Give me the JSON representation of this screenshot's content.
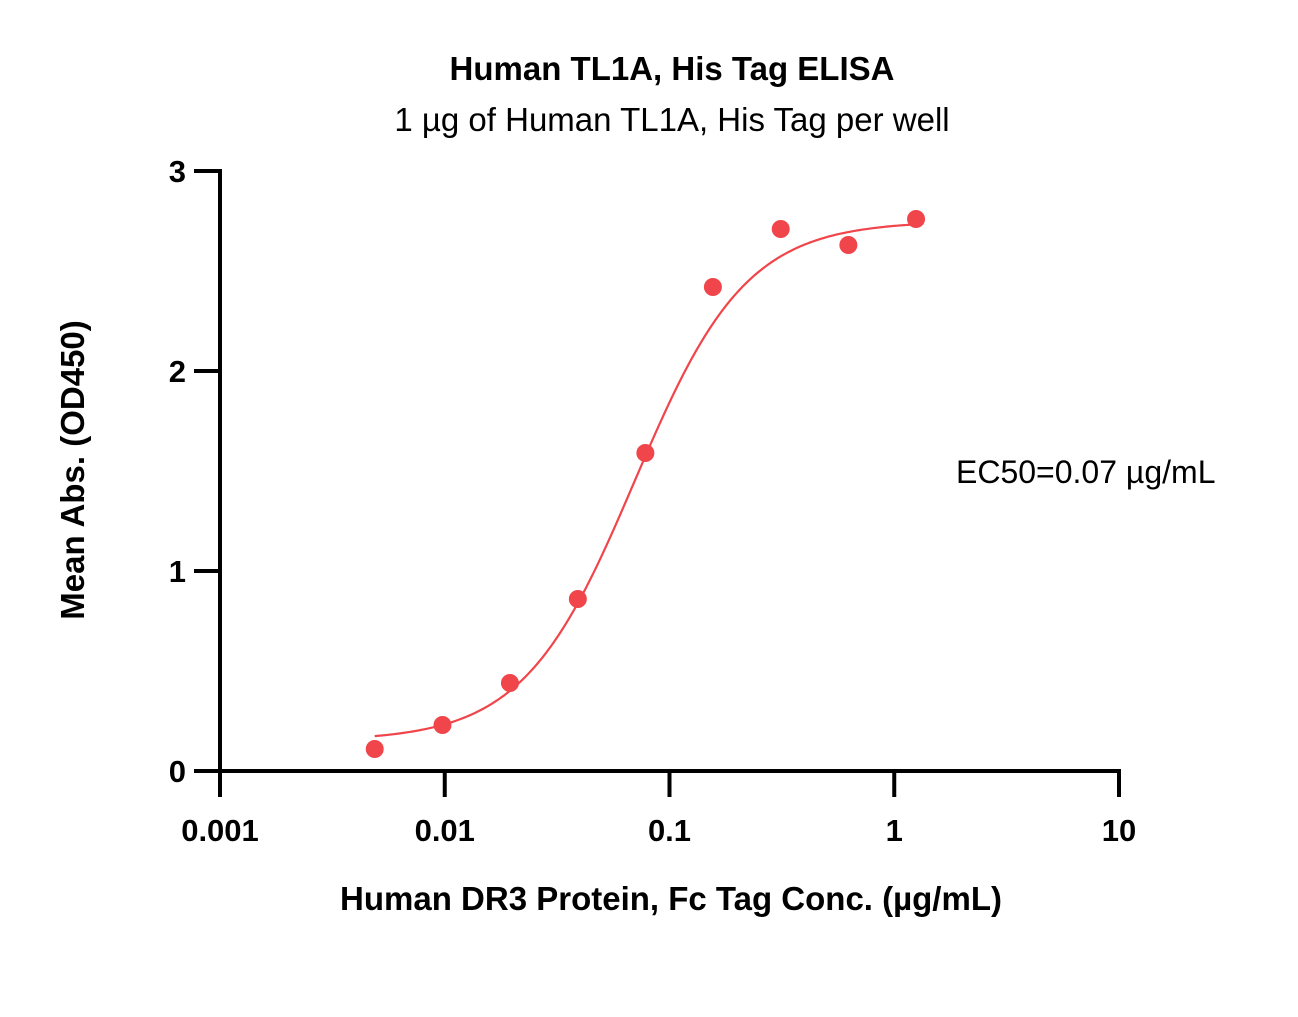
{
  "colors": {
    "series": "#f0454a",
    "axis": "#000000"
  },
  "chart_data": {
    "type": "scatter",
    "title": "Human TL1A, His Tag ELISA",
    "subtitle": "1 µg of Human TL1A, His Tag per well",
    "xlabel": "Human DR3 Protein, Fc Tag Conc. (µg/mL)",
    "ylabel": "Mean Abs. (OD450)",
    "x_scale": "log",
    "xlim": [
      0.001,
      10
    ],
    "ylim": [
      0,
      3
    ],
    "x_ticks": [
      {
        "value": 0.001,
        "label": "0.001"
      },
      {
        "value": 0.01,
        "label": "0.01"
      },
      {
        "value": 0.1,
        "label": "0.1"
      },
      {
        "value": 1,
        "label": "1"
      },
      {
        "value": 10,
        "label": "10"
      }
    ],
    "y_ticks": [
      {
        "value": 0,
        "label": "0"
      },
      {
        "value": 1,
        "label": "1"
      },
      {
        "value": 2,
        "label": "2"
      },
      {
        "value": 3,
        "label": "3"
      }
    ],
    "grid": false,
    "annotation": "EC50=0.07 µg/mL",
    "series": [
      {
        "points": [
          {
            "x": 0.00488,
            "y": 0.11
          },
          {
            "x": 0.00977,
            "y": 0.23
          },
          {
            "x": 0.0195,
            "y": 0.44
          },
          {
            "x": 0.0391,
            "y": 0.86
          },
          {
            "x": 0.0781,
            "y": 1.59
          },
          {
            "x": 0.156,
            "y": 2.42
          },
          {
            "x": 0.3125,
            "y": 2.71
          },
          {
            "x": 0.625,
            "y": 2.63
          },
          {
            "x": 1.25,
            "y": 2.76
          }
        ],
        "fit": {
          "model": "4PL",
          "bottom": 0.15,
          "top": 2.75,
          "ec50": 0.07,
          "hill": 1.75,
          "x_range": [
            0.00488,
            1.25
          ]
        }
      }
    ]
  }
}
